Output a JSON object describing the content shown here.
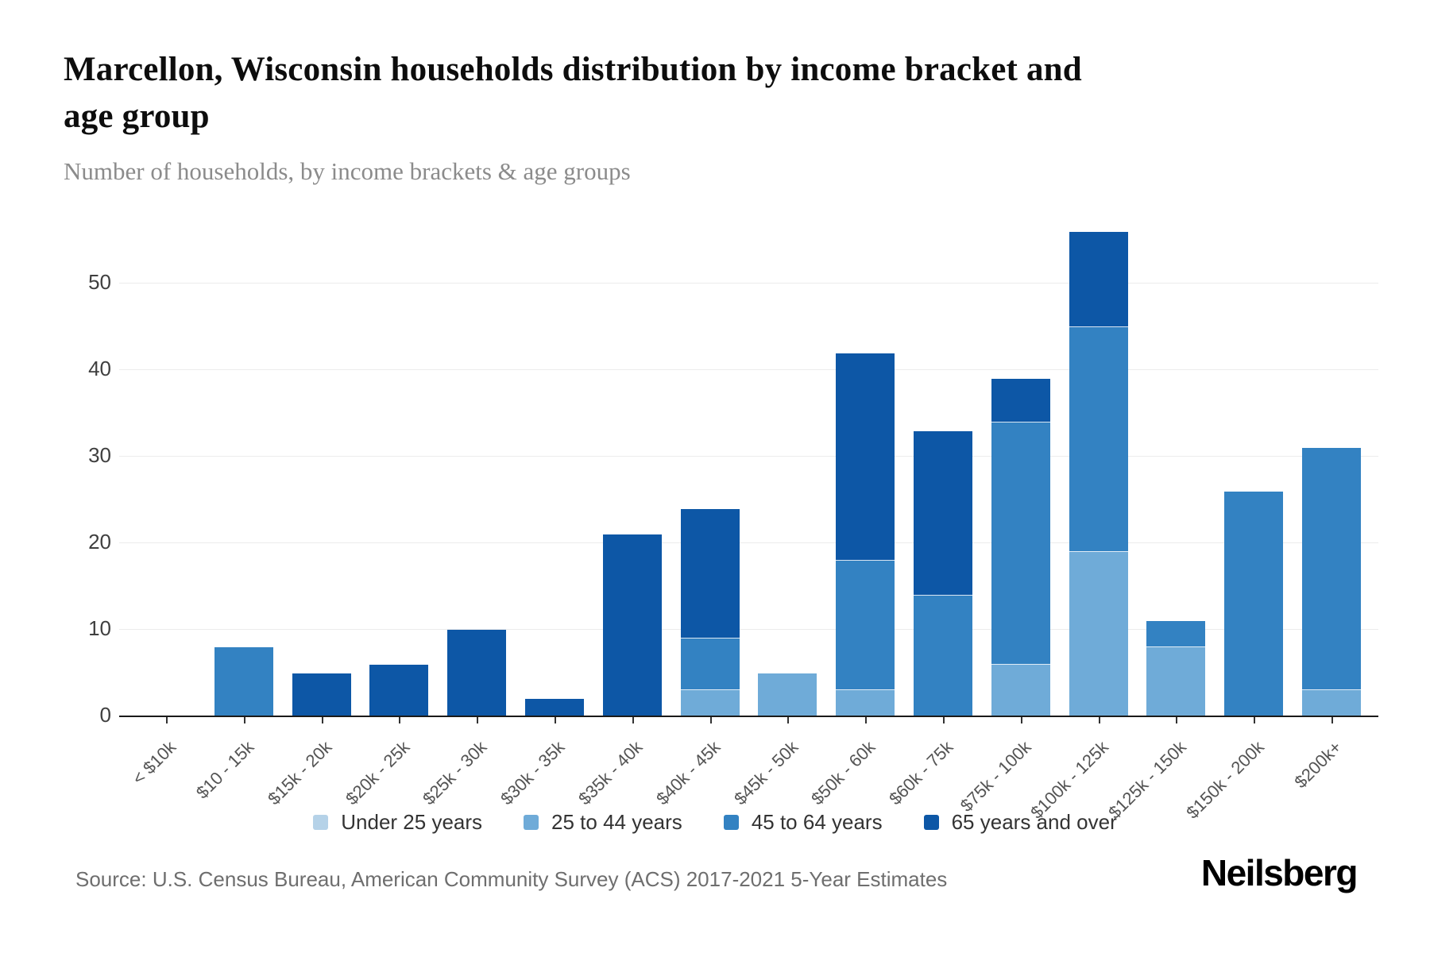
{
  "header": {
    "title_line1": "Marcellon, Wisconsin households distribution by income bracket and",
    "title_line2": "age group",
    "subtitle": "Number of households, by income brackets & age groups"
  },
  "chart_data": {
    "type": "bar",
    "stacked": true,
    "title": "Marcellon, Wisconsin households distribution by income bracket and age group",
    "xlabel": "",
    "ylabel": "",
    "ylim": [
      0,
      56
    ],
    "yticks": [
      0,
      10,
      20,
      30,
      40,
      50
    ],
    "grid": "horizontal",
    "legend_position": "bottom",
    "categories": [
      "< $10k",
      "$10 - 15k",
      "$15k - 20k",
      "$20k - 25k",
      "$25k - 30k",
      "$30k - 35k",
      "$35k - 40k",
      "$40k - 45k",
      "$45k - 50k",
      "$50k - 60k",
      "$60k - 75k",
      "$75k - 100k",
      "$100k - 125k",
      "$125k - 150k",
      "$150k - 200k",
      "$200k+"
    ],
    "series": [
      {
        "name": "Under 25 years",
        "color": "#b5d2e8",
        "values": [
          0,
          0,
          0,
          0,
          0,
          0,
          0,
          0,
          0,
          0,
          0,
          0,
          0,
          0,
          0,
          0
        ]
      },
      {
        "name": "25 to 44 years",
        "color": "#6fabd8",
        "values": [
          0,
          0,
          0,
          0,
          0,
          0,
          0,
          3,
          5,
          3,
          0,
          6,
          19,
          8,
          0,
          3
        ]
      },
      {
        "name": "45 to 64 years",
        "color": "#3382c2",
        "values": [
          0,
          8,
          0,
          0,
          0,
          0,
          0,
          6,
          0,
          15,
          14,
          28,
          26,
          3,
          26,
          28
        ]
      },
      {
        "name": "65 years and over",
        "color": "#0d57a6",
        "values": [
          0,
          0,
          5,
          6,
          10,
          2,
          21,
          15,
          0,
          24,
          19,
          5,
          11,
          0,
          0,
          0
        ]
      }
    ],
    "totals": [
      0,
      8,
      5,
      6,
      10,
      2,
      21,
      24,
      5,
      42,
      33,
      39,
      56,
      11,
      26,
      31
    ]
  },
  "footer": {
    "source": "Source: U.S. Census Bureau, American Community Survey (ACS) 2017-2021 5-Year Estimates",
    "logo": "Neilsberg"
  }
}
